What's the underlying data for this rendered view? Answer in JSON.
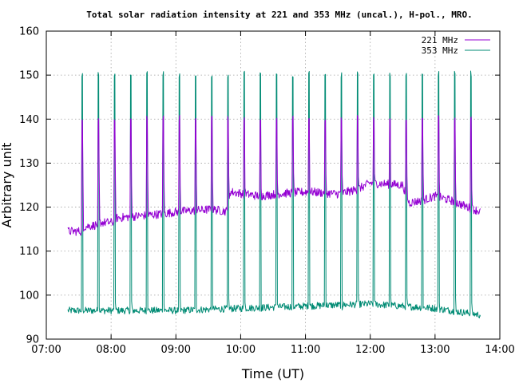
{
  "chart_data": {
    "type": "line",
    "title": "Total solar radiation intensity at 221 and 353 MHz (uncal.), H-pol., MRO.",
    "xlabel": "Time (UT)",
    "ylabel": "Arbitrary unit",
    "xlim": [
      "07:00",
      "14:00"
    ],
    "ylim": [
      90,
      160
    ],
    "x_ticks": [
      "07:00",
      "08:00",
      "09:00",
      "10:00",
      "11:00",
      "12:00",
      "13:00",
      "14:00"
    ],
    "y_ticks": [
      90,
      100,
      110,
      120,
      130,
      140,
      150,
      160
    ],
    "grid": true,
    "legend_position": "top-right",
    "x_start": "07:20",
    "x_end": "13:42",
    "calibration_pulse_times": [
      "07:33",
      "07:48",
      "08:03",
      "08:18",
      "08:33",
      "08:48",
      "09:03",
      "09:18",
      "09:33",
      "09:48",
      "10:03",
      "10:18",
      "10:33",
      "10:48",
      "11:03",
      "11:18",
      "11:33",
      "11:48",
      "12:03",
      "12:18",
      "12:33",
      "12:48",
      "13:03",
      "13:18",
      "13:33"
    ],
    "series": [
      {
        "name": "221 MHz",
        "color": "#9400d3",
        "baseline_points": [
          [
            "07:20",
            114.5
          ],
          [
            "07:33",
            114.5
          ],
          [
            "07:34",
            115.5
          ],
          [
            "07:48",
            116
          ],
          [
            "07:49",
            116.5
          ],
          [
            "08:03",
            116.5
          ],
          [
            "08:04",
            117.5
          ],
          [
            "08:48",
            118.5
          ],
          [
            "09:03",
            119
          ],
          [
            "09:33",
            119.5
          ],
          [
            "09:48",
            119
          ],
          [
            "09:50",
            123.5
          ],
          [
            "10:03",
            123
          ],
          [
            "10:18",
            122.5
          ],
          [
            "10:33",
            123
          ],
          [
            "11:03",
            123.5
          ],
          [
            "11:30",
            123
          ],
          [
            "11:48",
            124
          ],
          [
            "12:00",
            125.5
          ],
          [
            "12:30",
            125
          ],
          [
            "12:36",
            121
          ],
          [
            "12:48",
            121.5
          ],
          [
            "13:00",
            122.5
          ],
          [
            "13:15",
            121.5
          ],
          [
            "13:30",
            120
          ],
          [
            "13:42",
            119
          ]
        ],
        "pulse_peak": 141,
        "pulse_low": 124,
        "noise": 1.0
      },
      {
        "name": "353 MHz",
        "color": "#008b74",
        "baseline_points": [
          [
            "07:20",
            96.5
          ],
          [
            "08:00",
            96.5
          ],
          [
            "09:00",
            96.5
          ],
          [
            "10:00",
            97
          ],
          [
            "11:00",
            97.5
          ],
          [
            "12:00",
            98
          ],
          [
            "12:30",
            97.5
          ],
          [
            "13:00",
            97
          ],
          [
            "13:42",
            95.5
          ]
        ],
        "pulse_peak": 151,
        "pulse_low": 96,
        "noise": 0.8
      }
    ]
  }
}
